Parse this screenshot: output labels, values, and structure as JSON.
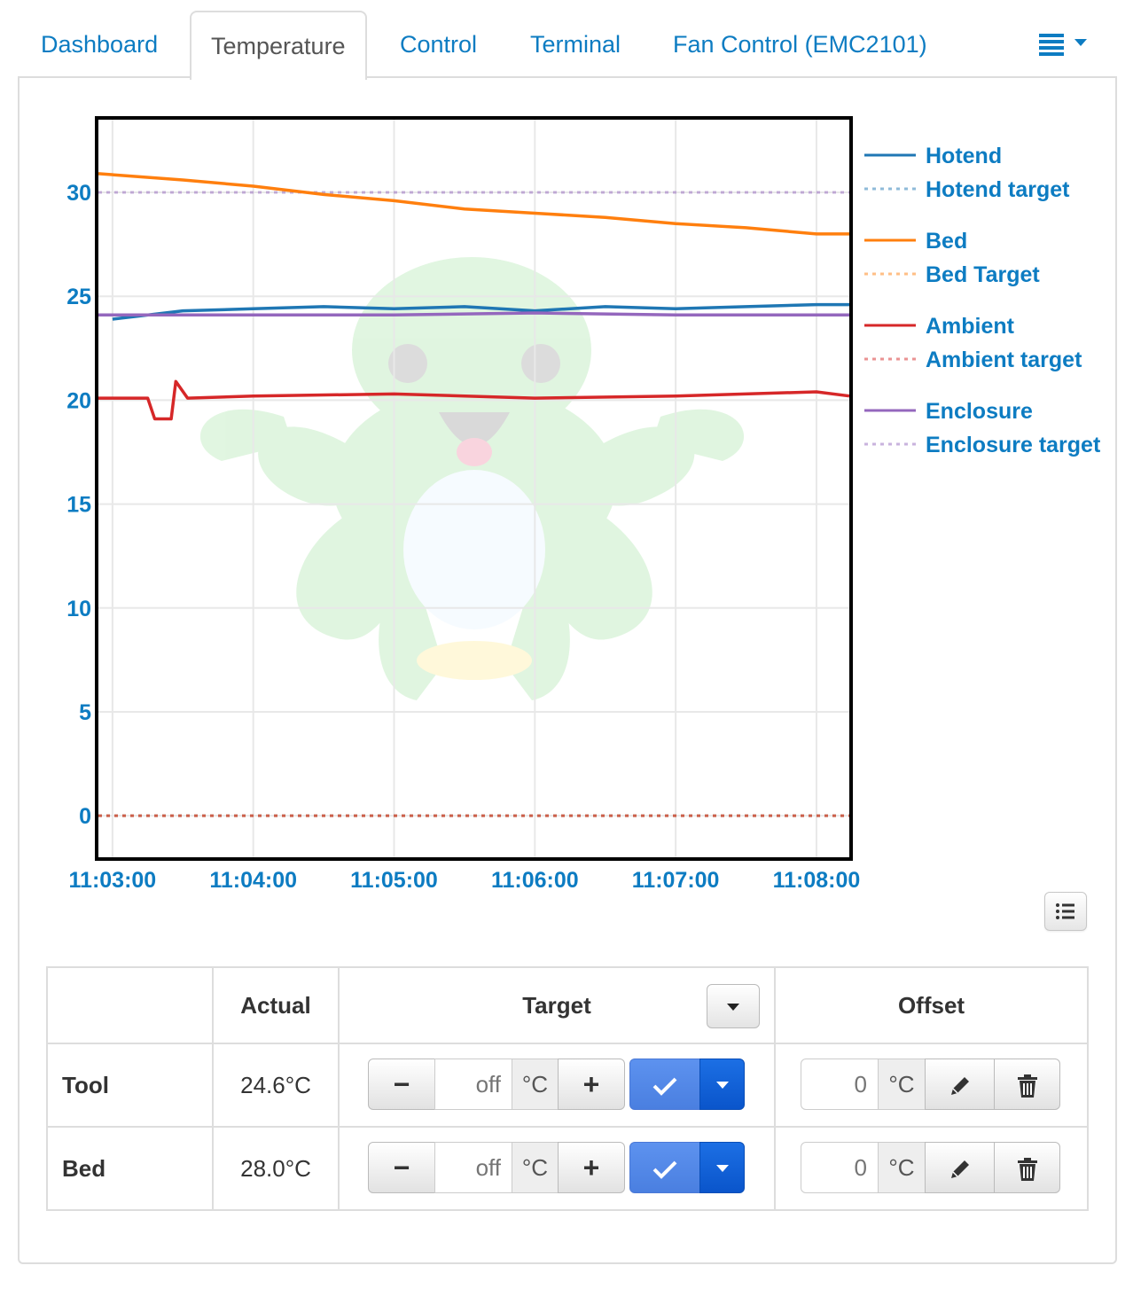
{
  "tabs": {
    "items": [
      {
        "label": "Dashboard"
      },
      {
        "label": "Temperature"
      },
      {
        "label": "Control"
      },
      {
        "label": "Terminal"
      },
      {
        "label": "Fan Control (EMC2101)"
      }
    ],
    "active": "Temperature",
    "menu_icon": "hamburger-menu-icon"
  },
  "colors": {
    "link": "#0d7cc2",
    "hotend": "#1f77b4",
    "bed": "#ff7f0e",
    "ambient": "#d62728",
    "enclosure": "#9467bd"
  },
  "chart_data": {
    "type": "line",
    "title": "",
    "xlabel": "",
    "ylabel": "",
    "ylim": [
      -2,
      33.5
    ],
    "y_ticks": [
      "0",
      "5",
      "10",
      "15",
      "20",
      "25",
      "30"
    ],
    "x_ticks": [
      "11:03:00",
      "11:04:00",
      "11:05:00",
      "11:06:00",
      "11:07:00",
      "11:08:00"
    ],
    "x_range": [
      "11:02:54",
      "11:08:14"
    ],
    "grid": true,
    "legend_position": "right",
    "series": [
      {
        "name": "Hotend",
        "style": "solid",
        "color": "#1f77b4",
        "x": [
          "11:03:00",
          "11:03:30",
          "11:04:00",
          "11:04:30",
          "11:05:00",
          "11:05:30",
          "11:06:00",
          "11:06:30",
          "11:07:00",
          "11:07:30",
          "11:08:00",
          "11:08:14"
        ],
        "y": [
          23.9,
          24.3,
          24.4,
          24.5,
          24.4,
          24.5,
          24.3,
          24.5,
          24.4,
          24.5,
          24.6,
          24.6
        ]
      },
      {
        "name": "Hotend target",
        "style": "dotted",
        "color": "#1f77b4",
        "x": [
          "11:02:54",
          "11:08:14"
        ],
        "y": [
          0,
          0
        ]
      },
      {
        "name": "Bed",
        "style": "solid",
        "color": "#ff7f0e",
        "x": [
          "11:02:54",
          "11:03:30",
          "11:04:00",
          "11:04:30",
          "11:05:00",
          "11:05:30",
          "11:06:00",
          "11:06:30",
          "11:07:00",
          "11:07:30",
          "11:08:00",
          "11:08:14"
        ],
        "y": [
          30.9,
          30.6,
          30.3,
          29.9,
          29.6,
          29.2,
          29.0,
          28.8,
          28.5,
          28.3,
          28.0,
          28.0
        ]
      },
      {
        "name": "Bed Target",
        "style": "dotted",
        "color": "#ff7f0e",
        "x": [
          "11:02:54",
          "11:08:14"
        ],
        "y": [
          0,
          0
        ]
      },
      {
        "name": "Ambient",
        "style": "solid",
        "color": "#d62728",
        "x": [
          "11:02:54",
          "11:03:15",
          "11:03:18",
          "11:03:25",
          "11:03:27",
          "11:03:32",
          "11:04:00",
          "11:05:00",
          "11:06:00",
          "11:07:00",
          "11:08:00",
          "11:08:14"
        ],
        "y": [
          20.1,
          20.1,
          19.1,
          19.1,
          20.9,
          20.1,
          20.2,
          20.3,
          20.1,
          20.2,
          20.4,
          20.2
        ]
      },
      {
        "name": "Ambient target",
        "style": "dotted",
        "color": "#d62728",
        "x": [
          "11:02:54",
          "11:08:14"
        ],
        "y": [
          0,
          0
        ]
      },
      {
        "name": "Enclosure",
        "style": "solid",
        "color": "#9467bd",
        "x": [
          "11:02:54",
          "11:04:00",
          "11:05:00",
          "11:06:00",
          "11:07:00",
          "11:08:00",
          "11:08:14"
        ],
        "y": [
          24.1,
          24.1,
          24.1,
          24.2,
          24.1,
          24.1,
          24.1
        ]
      },
      {
        "name": "Enclosure target",
        "style": "dotted",
        "color": "#9467bd",
        "x": [
          "11:02:54",
          "11:08:14"
        ],
        "y": [
          30,
          30
        ]
      }
    ]
  },
  "legend_toggle_icon": "list-icon",
  "table": {
    "headers": {
      "name": "",
      "actual": "Actual",
      "target": "Target",
      "offset": "Offset"
    },
    "rows": [
      {
        "label": "Tool",
        "actual": "24.6°C",
        "target_placeholder": "off",
        "unit": "°C",
        "offset": "0"
      },
      {
        "label": "Bed",
        "actual": "28.0°C",
        "target_placeholder": "off",
        "unit": "°C",
        "offset": "0"
      }
    ],
    "minus": "−",
    "plus": "+"
  }
}
